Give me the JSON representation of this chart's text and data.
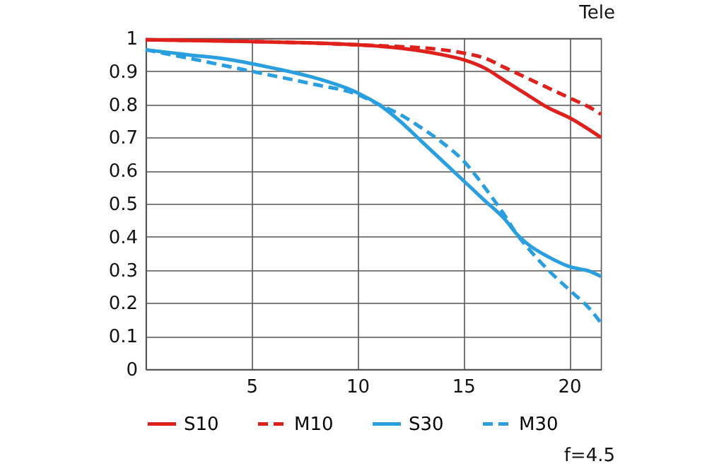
{
  "chart_data": {
    "type": "line",
    "title": "Tele",
    "annotations": [
      "f=4.5"
    ],
    "xlim": [
      0,
      21.5
    ],
    "xticks": [
      5,
      10,
      15,
      20
    ],
    "ylim": [
      0,
      1
    ],
    "yticks": [
      0,
      0.1,
      0.2,
      0.3,
      0.4,
      0.5,
      0.6,
      0.7,
      0.8,
      0.9,
      1
    ],
    "grid": true,
    "legend": "bottom",
    "marker": "none",
    "series": [
      {
        "name": "S10",
        "color": "#e0201b",
        "line_style": "solid",
        "x": [
          0,
          5,
          10,
          12,
          14,
          15,
          16,
          17,
          18,
          19,
          20,
          21.5
        ],
        "values": [
          0.995,
          0.99,
          0.98,
          0.97,
          0.95,
          0.935,
          0.91,
          0.87,
          0.83,
          0.79,
          0.76,
          0.7
        ]
      },
      {
        "name": "M10",
        "color": "#e0201b",
        "line_style": "dashed",
        "x": [
          0,
          5,
          10,
          14,
          15,
          16,
          17,
          18,
          19,
          20,
          21,
          21.5
        ],
        "values": [
          0.995,
          0.99,
          0.98,
          0.965,
          0.955,
          0.94,
          0.91,
          0.88,
          0.85,
          0.82,
          0.79,
          0.77
        ]
      },
      {
        "name": "S30",
        "color": "#2a9fe0",
        "line_style": "solid",
        "x": [
          0,
          2,
          4,
          6,
          8,
          10,
          11,
          12,
          13,
          14,
          15,
          16,
          17,
          17.5,
          18,
          19,
          20,
          21,
          21.5
        ],
        "values": [
          0.965,
          0.95,
          0.935,
          0.91,
          0.88,
          0.835,
          0.8,
          0.75,
          0.69,
          0.63,
          0.57,
          0.51,
          0.45,
          0.41,
          0.38,
          0.34,
          0.31,
          0.295,
          0.28
        ]
      },
      {
        "name": "M30",
        "color": "#2a9fe0",
        "line_style": "dashed",
        "x": [
          0,
          2,
          5,
          8,
          10,
          11,
          12,
          13,
          14,
          15,
          16,
          17,
          17.5,
          18,
          19,
          20,
          21,
          21.5
        ],
        "values": [
          0.965,
          0.94,
          0.9,
          0.86,
          0.83,
          0.8,
          0.77,
          0.73,
          0.685,
          0.63,
          0.55,
          0.46,
          0.41,
          0.37,
          0.3,
          0.24,
          0.18,
          0.14
        ]
      }
    ]
  }
}
